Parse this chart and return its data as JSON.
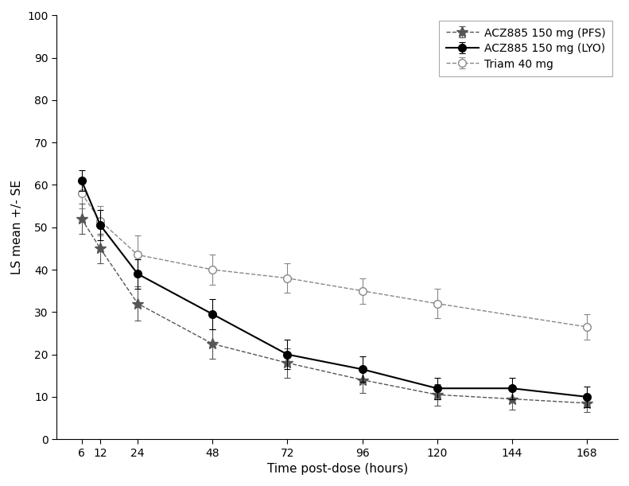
{
  "time_points": [
    6,
    12,
    24,
    48,
    72,
    96,
    120,
    144,
    168
  ],
  "pfs_mean": [
    52,
    45,
    32,
    22.5,
    18,
    14,
    10.5,
    9.5,
    8.5
  ],
  "pfs_se": [
    3.5,
    3.5,
    4.0,
    3.5,
    3.5,
    3.0,
    2.5,
    2.5,
    2.0
  ],
  "lyo_mean": [
    61,
    50.5,
    39,
    29.5,
    20,
    16.5,
    12,
    12,
    10
  ],
  "lyo_se": [
    2.5,
    3.5,
    3.5,
    3.5,
    3.5,
    3.0,
    2.5,
    2.5,
    2.5
  ],
  "triam_mean": [
    58,
    51.5,
    43.5,
    40,
    38,
    35,
    32,
    26.5
  ],
  "triam_se": [
    3.5,
    3.5,
    4.5,
    3.5,
    3.5,
    3.0,
    3.5,
    3.0
  ],
  "triam_time_points": [
    6,
    12,
    24,
    48,
    72,
    96,
    120,
    168
  ],
  "pfs_color": "#555555",
  "lyo_color": "#000000",
  "triam_color": "#888888",
  "xlabel": "Time post-dose (hours)",
  "ylabel": "LS mean +/- SE",
  "ylim": [
    0,
    100
  ],
  "yticks": [
    0,
    10,
    20,
    30,
    40,
    50,
    60,
    70,
    80,
    90,
    100
  ],
  "xticks": [
    6,
    12,
    24,
    48,
    72,
    96,
    120,
    144,
    168
  ],
  "xtick_labels": [
    "6",
    "12",
    "24",
    "48",
    "72",
    "96",
    "120",
    "144",
    "168"
  ],
  "legend_labels": [
    "ACZ885 150 mg (PFS)",
    "ACZ885 150 mg (LYO)",
    "Triam 40 mg"
  ],
  "background_color": "#ffffff",
  "axis_fontsize": 11,
  "tick_fontsize": 10,
  "legend_fontsize": 10
}
